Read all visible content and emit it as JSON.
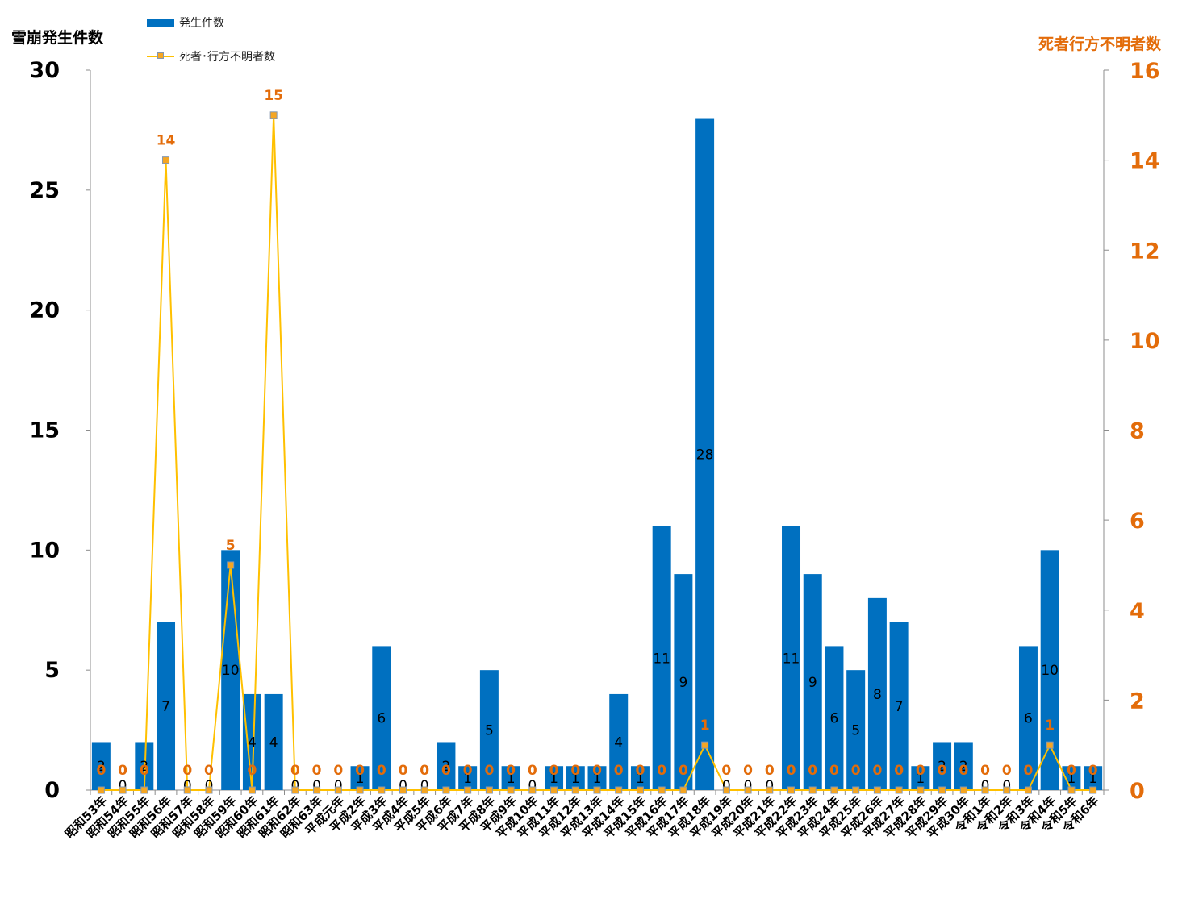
{
  "colors": {
    "bar": "#0070C0",
    "line": "#FFC000",
    "marker_fill": "#F5A623",
    "marker_border": "#8497B0",
    "right_axis": "#E36C0A",
    "left_axis": "#000000"
  },
  "axis_titles": {
    "left": "雪崩発生件数",
    "right": "死者行方不明者数"
  },
  "legend": {
    "bar_label": "発生件数",
    "line_label": "死者･行方不明者数"
  },
  "chart_data": {
    "type": "bar+line",
    "categories": [
      "昭和53年",
      "昭和54年",
      "昭和55年",
      "昭和56年",
      "昭和57年",
      "昭和58年",
      "昭和59年",
      "昭和60年",
      "昭和61年",
      "昭和62年",
      "昭和63年",
      "平成元年",
      "平成2年",
      "平成3年",
      "平成4年",
      "平成5年",
      "平成6年",
      "平成7年",
      "平成8年",
      "平成9年",
      "平成10年",
      "平成11年",
      "平成12年",
      "平成13年",
      "平成14年",
      "平成15年",
      "平成16年",
      "平成17年",
      "平成18年",
      "平成19年",
      "平成20年",
      "平成21年",
      "平成22年",
      "平成23年",
      "平成24年",
      "平成25年",
      "平成26年",
      "平成27年",
      "平成28年",
      "平成29年",
      "平成30年",
      "令和1年",
      "令和2年",
      "令和3年",
      "令和4年",
      "令和5年",
      "令和6年"
    ],
    "series": [
      {
        "name": "発生件数",
        "axis": "left",
        "kind": "bar",
        "values": [
          2,
          0,
          2,
          7,
          0,
          0,
          10,
          4,
          4,
          0,
          0,
          0,
          1,
          6,
          0,
          0,
          2,
          1,
          5,
          1,
          0,
          1,
          1,
          1,
          4,
          1,
          11,
          9,
          28,
          0,
          0,
          0,
          11,
          9,
          6,
          5,
          8,
          7,
          1,
          2,
          2,
          0,
          0,
          6,
          10,
          1,
          1
        ]
      },
      {
        "name": "死者･行方不明者数",
        "axis": "right",
        "kind": "line",
        "values": [
          0,
          0,
          0,
          14,
          0,
          0,
          5,
          0,
          15,
          0,
          0,
          0,
          0,
          0,
          0,
          0,
          0,
          0,
          0,
          0,
          0,
          0,
          0,
          0,
          0,
          0,
          0,
          0,
          1,
          0,
          0,
          0,
          0,
          0,
          0,
          0,
          0,
          0,
          0,
          0,
          0,
          0,
          0,
          0,
          1,
          0,
          0
        ]
      }
    ],
    "left_axis": {
      "ylim": [
        0,
        30
      ],
      "ticks": [
        0,
        5,
        10,
        15,
        20,
        25,
        30
      ]
    },
    "right_axis": {
      "ylim": [
        0,
        16
      ],
      "ticks": [
        0,
        2,
        4,
        6,
        8,
        10,
        12,
        14,
        16
      ]
    },
    "grid": false,
    "legend_position": "top-left"
  }
}
